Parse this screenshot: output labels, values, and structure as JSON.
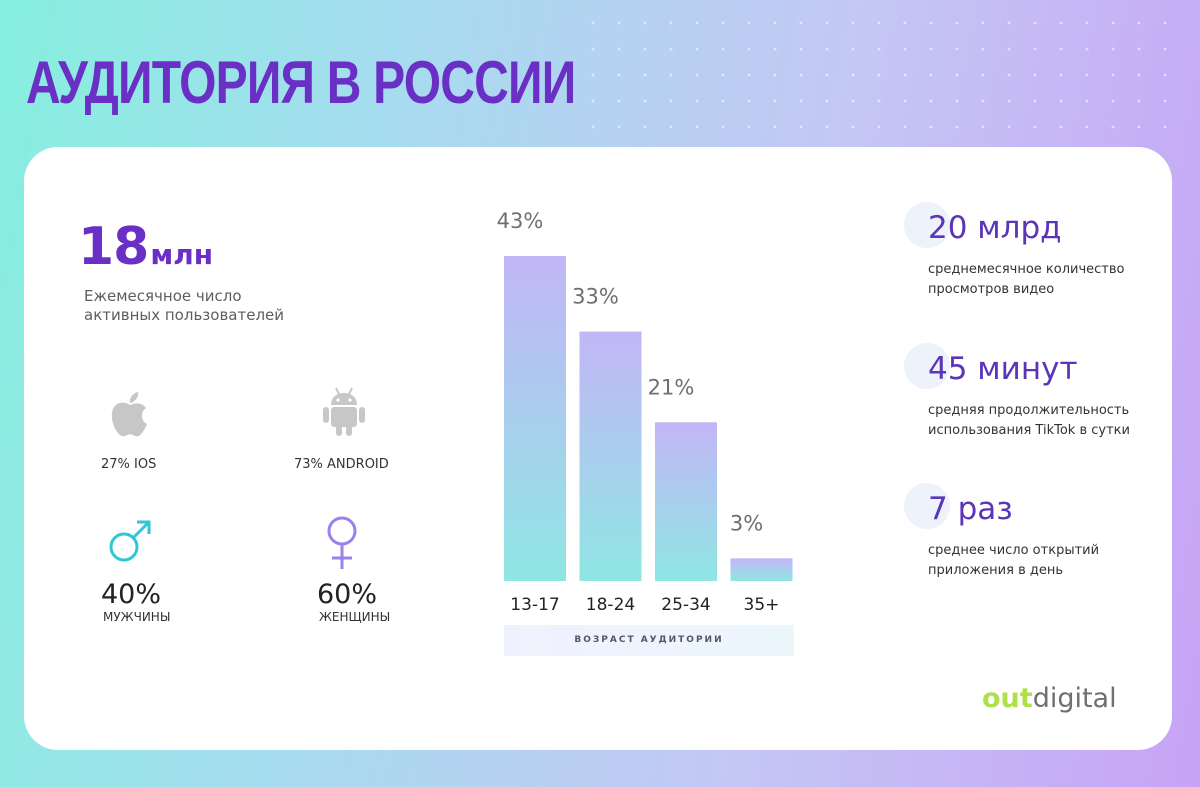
{
  "title": "АУДИТОРИЯ В РОССИИ",
  "monthly_users": {
    "number": "18",
    "unit": "млн",
    "description": "Ежемесячное число активных пользователей"
  },
  "platforms": [
    {
      "icon": "apple-icon",
      "caption": "27% IOS",
      "value": 27
    },
    {
      "icon": "android-icon",
      "caption": "73% ANDROID",
      "value": 73
    }
  ],
  "gender": [
    {
      "icon": "male-symbol-icon",
      "percent": "40%",
      "label": "МУЖЧИНЫ",
      "color": "#2fc6d6"
    },
    {
      "icon": "female-symbol-icon",
      "percent": "60%",
      "label": "ЖЕНЩИНЫ",
      "color": "#9b80ee"
    }
  ],
  "chart_data": {
    "type": "bar",
    "categories": [
      "13-17",
      "18-24",
      "25-34",
      "35+"
    ],
    "values": [
      43,
      33,
      21,
      3
    ],
    "value_labels": [
      "43%",
      "33%",
      "21%",
      "3%"
    ],
    "xlabel": "ВОЗРАСТ АУДИТОРИИ",
    "ylabel": "",
    "ylim": [
      0,
      43
    ],
    "grid": false,
    "colors": {
      "bar_top": "#c2b6f6",
      "bar_bottom": "#8fe6e4"
    }
  },
  "stats": [
    {
      "value": "20 млрд",
      "label": "среднемесячное количество просмотров видео"
    },
    {
      "value": "45 минут",
      "label": "средняя продолжительность использования TikTok в сутки"
    },
    {
      "value": "7 раз",
      "label": "среднее число открытий приложения в день"
    }
  ],
  "logo": {
    "part1": "out",
    "part2": "digital"
  },
  "colors": {
    "accent": "#6a2fc4",
    "stat_value": "#5b34b8",
    "logo_green": "#aee04a"
  }
}
